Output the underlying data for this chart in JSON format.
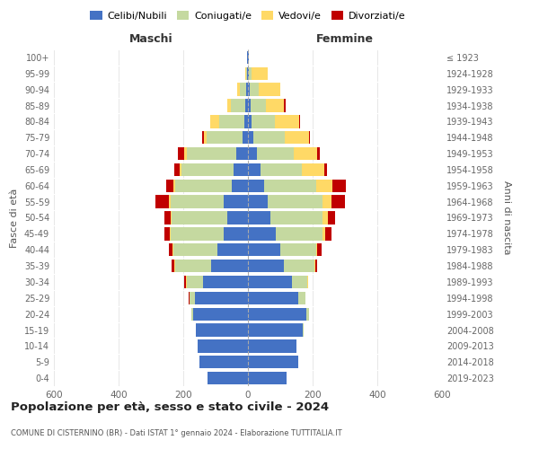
{
  "age_groups": [
    "0-4",
    "5-9",
    "10-14",
    "15-19",
    "20-24",
    "25-29",
    "30-34",
    "35-39",
    "40-44",
    "45-49",
    "50-54",
    "55-59",
    "60-64",
    "65-69",
    "70-74",
    "75-79",
    "80-84",
    "85-89",
    "90-94",
    "95-99",
    "100+"
  ],
  "birth_years": [
    "2019-2023",
    "2014-2018",
    "2009-2013",
    "2004-2008",
    "1999-2003",
    "1994-1998",
    "1989-1993",
    "1984-1988",
    "1979-1983",
    "1974-1978",
    "1969-1973",
    "1964-1968",
    "1959-1963",
    "1954-1958",
    "1949-1953",
    "1944-1948",
    "1939-1943",
    "1934-1938",
    "1929-1933",
    "1924-1928",
    "≤ 1923"
  ],
  "maschi": {
    "celibi": [
      125,
      150,
      155,
      160,
      170,
      165,
      140,
      115,
      95,
      75,
      65,
      75,
      50,
      45,
      35,
      18,
      10,
      8,
      6,
      4,
      2
    ],
    "coniugati": [
      0,
      0,
      0,
      0,
      5,
      15,
      50,
      110,
      135,
      165,
      170,
      165,
      175,
      160,
      155,
      110,
      80,
      45,
      18,
      2,
      0
    ],
    "vedovi": [
      0,
      0,
      0,
      0,
      0,
      0,
      2,
      2,
      2,
      2,
      5,
      5,
      5,
      5,
      8,
      8,
      28,
      12,
      8,
      3,
      0
    ],
    "divorziati": [
      0,
      0,
      0,
      0,
      0,
      2,
      5,
      8,
      12,
      15,
      18,
      42,
      22,
      18,
      18,
      5,
      0,
      0,
      0,
      0,
      0
    ]
  },
  "femmine": {
    "nubili": [
      120,
      155,
      150,
      170,
      180,
      155,
      135,
      110,
      100,
      85,
      70,
      60,
      50,
      38,
      28,
      18,
      12,
      8,
      6,
      4,
      2
    ],
    "coniugate": [
      0,
      0,
      0,
      2,
      8,
      22,
      48,
      95,
      110,
      145,
      160,
      170,
      162,
      130,
      115,
      95,
      70,
      48,
      28,
      8,
      0
    ],
    "vedove": [
      0,
      0,
      0,
      0,
      0,
      0,
      2,
      2,
      5,
      10,
      18,
      28,
      48,
      68,
      72,
      75,
      75,
      55,
      65,
      48,
      2
    ],
    "divorziate": [
      0,
      0,
      0,
      0,
      0,
      0,
      2,
      8,
      12,
      18,
      22,
      42,
      42,
      8,
      8,
      5,
      5,
      5,
      0,
      0,
      0
    ]
  },
  "colors": {
    "celibi": "#4472c4",
    "coniugati": "#c5d9a0",
    "vedovi": "#ffd966",
    "divorziati": "#c00000"
  },
  "legend_labels": [
    "Celibi/Nubili",
    "Coniugati/e",
    "Vedovi/e",
    "Divorziati/e"
  ],
  "title": "Popolazione per età, sesso e stato civile - 2024",
  "subtitle": "COMUNE DI CISTERNINO (BR) - Dati ISTAT 1° gennaio 2024 - Elaborazione TUTTITALIA.IT",
  "xlabel_left": "Maschi",
  "xlabel_right": "Femmine",
  "ylabel_left": "Fasce di età",
  "ylabel_right": "Anni di nascita",
  "xlim": 600,
  "bg_color": "#ffffff",
  "grid_color": "#cccccc"
}
